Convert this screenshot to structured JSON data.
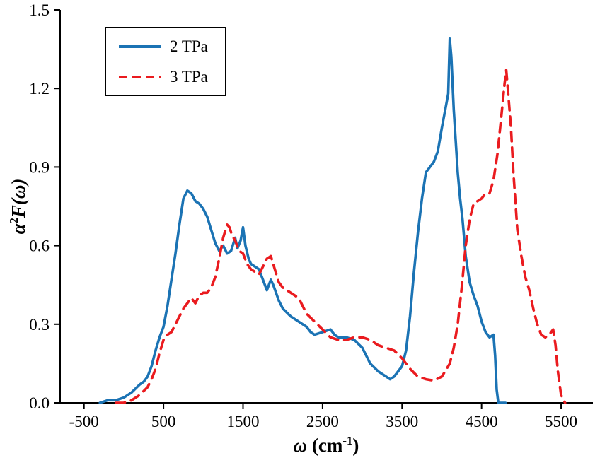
{
  "page": {
    "background": "#ffffff"
  },
  "chart_data": {
    "type": "line",
    "title": "",
    "x_axis": {
      "title_symbol": "ω",
      "title_mid": " (cm",
      "title_sup": "-1",
      "title_end": ")",
      "min": -800,
      "max": 5900,
      "ticks": [
        "-500",
        "500",
        "1500",
        "2500",
        "3500",
        "4500",
        "5500"
      ]
    },
    "y_axis": {
      "title_symbol": "α",
      "title_sup": "2",
      "title_rest": "F(ω)",
      "min": 0,
      "max": 1.5,
      "ticks": [
        "0.0",
        "0.3",
        "0.6",
        "0.9",
        "1.2",
        "1.5"
      ]
    },
    "legend": {
      "position": "upper-left"
    },
    "series": [
      {
        "name": "2 TPa",
        "color": "#1b73b4",
        "style": "solid",
        "width": 3.6,
        "points": [
          [
            -300,
            0
          ],
          [
            -200,
            0.01
          ],
          [
            -100,
            0.01
          ],
          [
            0,
            0.02
          ],
          [
            100,
            0.04
          ],
          [
            200,
            0.07
          ],
          [
            250,
            0.08
          ],
          [
            300,
            0.1
          ],
          [
            350,
            0.14
          ],
          [
            400,
            0.2
          ],
          [
            450,
            0.25
          ],
          [
            500,
            0.29
          ],
          [
            550,
            0.37
          ],
          [
            600,
            0.47
          ],
          [
            650,
            0.57
          ],
          [
            700,
            0.68
          ],
          [
            750,
            0.78
          ],
          [
            800,
            0.81
          ],
          [
            850,
            0.8
          ],
          [
            900,
            0.77
          ],
          [
            950,
            0.76
          ],
          [
            1000,
            0.74
          ],
          [
            1050,
            0.71
          ],
          [
            1100,
            0.66
          ],
          [
            1150,
            0.61
          ],
          [
            1200,
            0.58
          ],
          [
            1250,
            0.6
          ],
          [
            1300,
            0.57
          ],
          [
            1350,
            0.58
          ],
          [
            1400,
            0.63
          ],
          [
            1430,
            0.59
          ],
          [
            1470,
            0.62
          ],
          [
            1500,
            0.67
          ],
          [
            1530,
            0.6
          ],
          [
            1570,
            0.55
          ],
          [
            1600,
            0.53
          ],
          [
            1650,
            0.52
          ],
          [
            1700,
            0.51
          ],
          [
            1750,
            0.47
          ],
          [
            1800,
            0.43
          ],
          [
            1850,
            0.47
          ],
          [
            1880,
            0.45
          ],
          [
            1950,
            0.39
          ],
          [
            2000,
            0.36
          ],
          [
            2100,
            0.33
          ],
          [
            2200,
            0.31
          ],
          [
            2300,
            0.29
          ],
          [
            2350,
            0.27
          ],
          [
            2400,
            0.26
          ],
          [
            2500,
            0.27
          ],
          [
            2600,
            0.28
          ],
          [
            2650,
            0.26
          ],
          [
            2700,
            0.25
          ],
          [
            2800,
            0.25
          ],
          [
            2900,
            0.24
          ],
          [
            3000,
            0.21
          ],
          [
            3050,
            0.18
          ],
          [
            3100,
            0.15
          ],
          [
            3200,
            0.12
          ],
          [
            3300,
            0.1
          ],
          [
            3350,
            0.09
          ],
          [
            3400,
            0.1
          ],
          [
            3500,
            0.14
          ],
          [
            3550,
            0.2
          ],
          [
            3600,
            0.33
          ],
          [
            3650,
            0.5
          ],
          [
            3700,
            0.65
          ],
          [
            3750,
            0.78
          ],
          [
            3800,
            0.88
          ],
          [
            3850,
            0.9
          ],
          [
            3900,
            0.92
          ],
          [
            3950,
            0.96
          ],
          [
            4000,
            1.05
          ],
          [
            4050,
            1.13
          ],
          [
            4080,
            1.18
          ],
          [
            4100,
            1.39
          ],
          [
            4120,
            1.32
          ],
          [
            4150,
            1.12
          ],
          [
            4200,
            0.88
          ],
          [
            4230,
            0.78
          ],
          [
            4260,
            0.7
          ],
          [
            4300,
            0.56
          ],
          [
            4350,
            0.46
          ],
          [
            4400,
            0.41
          ],
          [
            4450,
            0.37
          ],
          [
            4500,
            0.31
          ],
          [
            4550,
            0.27
          ],
          [
            4600,
            0.25
          ],
          [
            4650,
            0.26
          ],
          [
            4670,
            0.18
          ],
          [
            4690,
            0.05
          ],
          [
            4710,
            0
          ],
          [
            4800,
            0
          ]
        ]
      },
      {
        "name": "3 TPa",
        "color": "#ea1b1f",
        "style": "dashed",
        "width": 3.6,
        "points": [
          [
            -100,
            0
          ],
          [
            0,
            0
          ],
          [
            100,
            0.01
          ],
          [
            200,
            0.03
          ],
          [
            300,
            0.06
          ],
          [
            350,
            0.09
          ],
          [
            400,
            0.13
          ],
          [
            450,
            0.19
          ],
          [
            500,
            0.24
          ],
          [
            550,
            0.26
          ],
          [
            600,
            0.27
          ],
          [
            650,
            0.3
          ],
          [
            700,
            0.33
          ],
          [
            750,
            0.36
          ],
          [
            800,
            0.38
          ],
          [
            850,
            0.4
          ],
          [
            900,
            0.38
          ],
          [
            950,
            0.41
          ],
          [
            1000,
            0.42
          ],
          [
            1050,
            0.42
          ],
          [
            1100,
            0.44
          ],
          [
            1150,
            0.48
          ],
          [
            1200,
            0.55
          ],
          [
            1250,
            0.63
          ],
          [
            1300,
            0.68
          ],
          [
            1330,
            0.67
          ],
          [
            1360,
            0.64
          ],
          [
            1400,
            0.62
          ],
          [
            1450,
            0.58
          ],
          [
            1500,
            0.57
          ],
          [
            1550,
            0.53
          ],
          [
            1600,
            0.51
          ],
          [
            1650,
            0.5
          ],
          [
            1700,
            0.49
          ],
          [
            1750,
            0.52
          ],
          [
            1800,
            0.55
          ],
          [
            1850,
            0.56
          ],
          [
            1900,
            0.51
          ],
          [
            1950,
            0.46
          ],
          [
            2000,
            0.44
          ],
          [
            2100,
            0.42
          ],
          [
            2200,
            0.4
          ],
          [
            2250,
            0.37
          ],
          [
            2300,
            0.34
          ],
          [
            2400,
            0.31
          ],
          [
            2500,
            0.28
          ],
          [
            2600,
            0.25
          ],
          [
            2700,
            0.24
          ],
          [
            2800,
            0.24
          ],
          [
            2900,
            0.25
          ],
          [
            3000,
            0.25
          ],
          [
            3100,
            0.24
          ],
          [
            3200,
            0.22
          ],
          [
            3300,
            0.21
          ],
          [
            3400,
            0.2
          ],
          [
            3500,
            0.17
          ],
          [
            3600,
            0.13
          ],
          [
            3700,
            0.1
          ],
          [
            3800,
            0.09
          ],
          [
            3900,
            0.085
          ],
          [
            4000,
            0.1
          ],
          [
            4100,
            0.15
          ],
          [
            4150,
            0.21
          ],
          [
            4200,
            0.3
          ],
          [
            4250,
            0.44
          ],
          [
            4300,
            0.6
          ],
          [
            4350,
            0.7
          ],
          [
            4400,
            0.76
          ],
          [
            4450,
            0.77
          ],
          [
            4500,
            0.78
          ],
          [
            4550,
            0.8
          ],
          [
            4600,
            0.8
          ],
          [
            4650,
            0.85
          ],
          [
            4700,
            0.95
          ],
          [
            4750,
            1.1
          ],
          [
            4790,
            1.22
          ],
          [
            4810,
            1.27
          ],
          [
            4830,
            1.2
          ],
          [
            4870,
            1.05
          ],
          [
            4900,
            0.88
          ],
          [
            4950,
            0.66
          ],
          [
            5000,
            0.56
          ],
          [
            5050,
            0.48
          ],
          [
            5100,
            0.43
          ],
          [
            5150,
            0.36
          ],
          [
            5200,
            0.3
          ],
          [
            5250,
            0.26
          ],
          [
            5300,
            0.25
          ],
          [
            5350,
            0.26
          ],
          [
            5400,
            0.28
          ],
          [
            5430,
            0.22
          ],
          [
            5460,
            0.12
          ],
          [
            5500,
            0.03
          ],
          [
            5550,
            0
          ]
        ]
      }
    ]
  }
}
